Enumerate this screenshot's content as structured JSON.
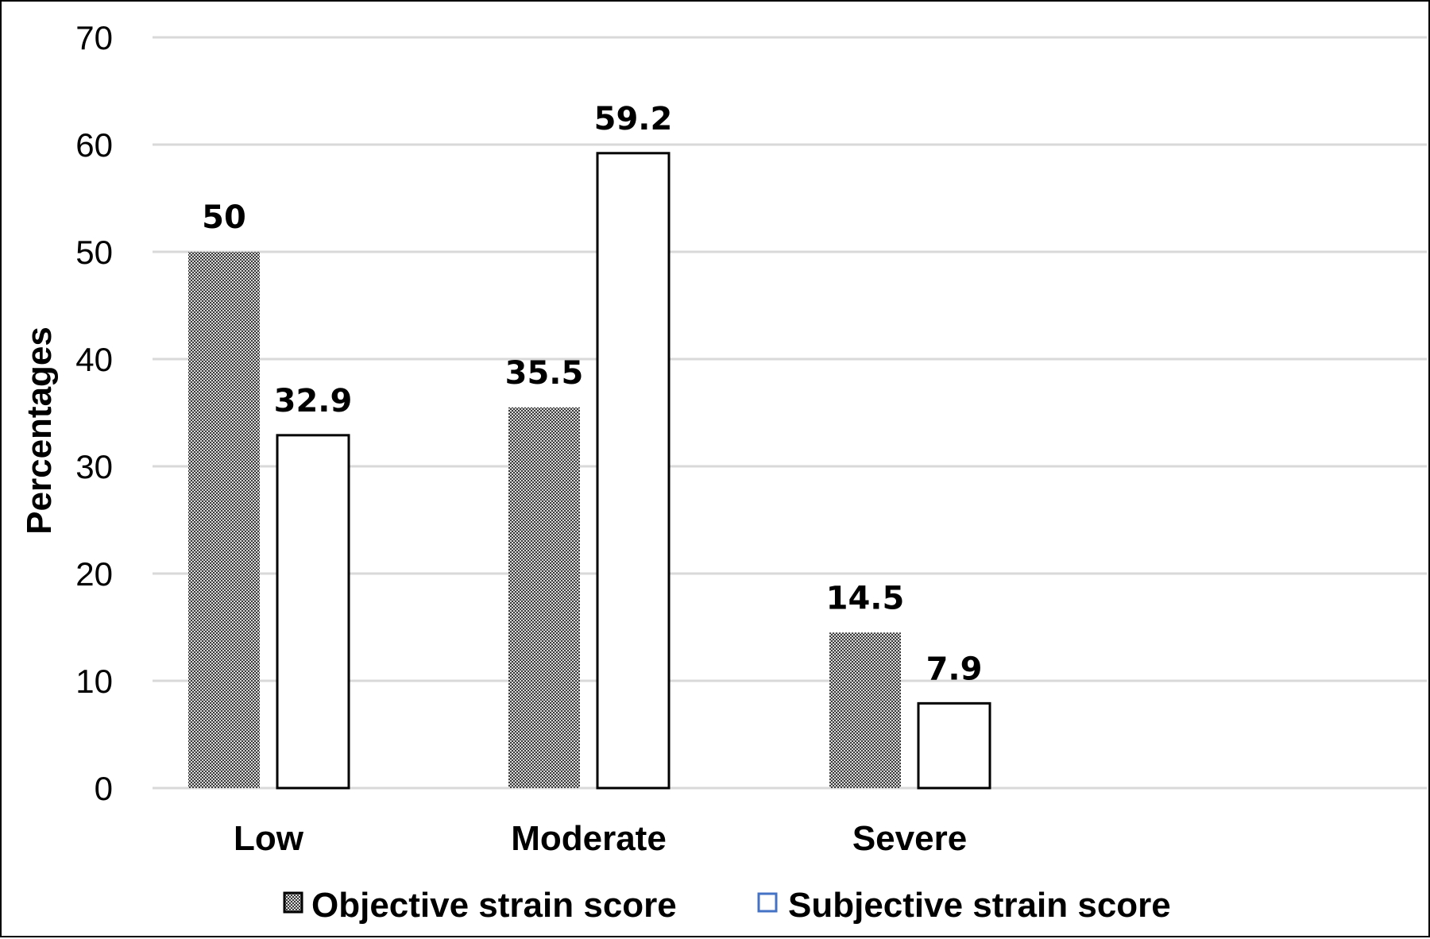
{
  "chart_data": {
    "type": "bar",
    "categories": [
      "Low",
      "Moderate",
      "Severe"
    ],
    "series": [
      {
        "name": "Objective strain score",
        "values": [
          50,
          35.5,
          14.5
        ],
        "color": "#8a8a8a",
        "pattern": "checker"
      },
      {
        "name": "Subjective strain score",
        "values": [
          32.9,
          59.2,
          7.9
        ],
        "color": "#ffffff",
        "pattern": "none"
      }
    ],
    "data_labels": [
      [
        "50",
        "35.5",
        "14.5"
      ],
      [
        "32.9",
        "59.2",
        "7.9"
      ]
    ],
    "title": "",
    "xlabel": "",
    "ylabel": "Percentages",
    "ylim": [
      0,
      70
    ],
    "yticks": [
      0,
      10,
      20,
      30,
      40,
      50,
      60,
      70
    ],
    "grid": true,
    "legend_position": "bottom",
    "gridline_color": "#d9d9d9",
    "legend_subjective_marker_color": "#4472c4"
  }
}
